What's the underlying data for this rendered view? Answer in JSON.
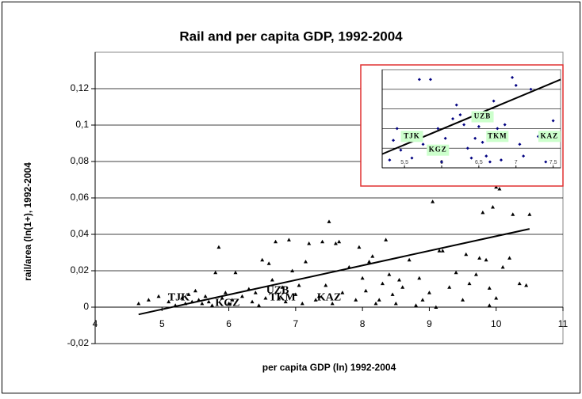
{
  "chart_data": [
    {
      "type": "scatter",
      "title": "Rail and per capita GDP, 1992-2004",
      "xlabel": "per capita GDP (ln) 1992-2004",
      "ylabel": "rail/area (ln(1+), 1992-2004",
      "xlim": [
        4,
        11
      ],
      "xticks": [
        4,
        5,
        6,
        7,
        8,
        9,
        10,
        11
      ],
      "ylim": [
        -0.02,
        0.14
      ],
      "yticks": [
        {
          "value": -0.02,
          "label": "-0,02"
        },
        0,
        {
          "value": 0.02,
          "label": "0,02"
        },
        {
          "value": 0.04,
          "label": "0,04"
        },
        {
          "value": 0.06,
          "label": "0,06"
        },
        {
          "value": 0.08,
          "label": "0,08"
        },
        {
          "value": 0.1,
          "label": "0,1"
        },
        {
          "value": 0.12,
          "label": "0,12"
        }
      ],
      "grid": true,
      "color": "#000000",
      "marker": "triangle",
      "x": [
        4.65,
        4.8,
        4.95,
        5.1,
        5.2,
        5.3,
        5.35,
        5.4,
        5.45,
        5.5,
        5.55,
        5.6,
        5.65,
        5.7,
        5.75,
        5.8,
        5.85,
        5.9,
        5.95,
        6.0,
        6.05,
        6.1,
        6.2,
        6.3,
        6.35,
        6.4,
        6.45,
        6.5,
        6.55,
        6.6,
        6.65,
        6.7,
        6.75,
        6.8,
        6.85,
        6.9,
        6.95,
        7.0,
        7.05,
        7.1,
        7.15,
        7.2,
        7.3,
        7.35,
        7.4,
        7.45,
        7.5,
        7.55,
        7.6,
        7.65,
        7.7,
        7.8,
        7.9,
        7.95,
        8.0,
        8.05,
        8.1,
        8.15,
        8.2,
        8.25,
        8.3,
        8.35,
        8.4,
        8.45,
        8.5,
        8.55,
        8.6,
        8.7,
        8.8,
        8.85,
        8.9,
        9.0,
        9.05,
        9.1,
        9.15,
        9.2,
        9.3,
        9.4,
        9.5,
        9.55,
        9.6,
        9.7,
        9.75,
        9.8,
        9.85,
        9.9,
        9.95,
        10.0,
        10.05,
        10.1,
        10.2,
        10.25,
        10.35,
        10.45,
        10.5,
        9.9,
        10.0
      ],
      "y": [
        0.002,
        0.004,
        0.006,
        0.003,
        0.001,
        0.005,
        0.002,
        0.007,
        0.003,
        0.009,
        0.004,
        0.002,
        0.006,
        0.003,
        0.001,
        0.019,
        0.033,
        0.005,
        0.008,
        0.002,
        0.004,
        0.019,
        0.006,
        0.01,
        0.003,
        0.008,
        0.001,
        0.026,
        0.005,
        0.024,
        0.015,
        0.036,
        0.005,
        0.011,
        0.003,
        0.037,
        0.02,
        0.007,
        0.012,
        0.002,
        0.025,
        0.035,
        0.004,
        0.006,
        0.036,
        0.012,
        0.047,
        0.002,
        0.035,
        0.036,
        0.008,
        0.022,
        0.004,
        0.033,
        0.016,
        0.009,
        0.025,
        0.028,
        0.002,
        0.004,
        0.013,
        0.037,
        0.018,
        0.007,
        0.002,
        0.015,
        0.011,
        0.026,
        0.001,
        0.016,
        0.004,
        0.008,
        0.058,
        0.0,
        0.031,
        0.031,
        0.011,
        0.019,
        0.004,
        0.029,
        0.013,
        0.018,
        0.027,
        0.052,
        0.026,
        0.001,
        0.055,
        0.005,
        0.065,
        0.022,
        0.027,
        0.051,
        0.013,
        0.012,
        0.051,
        0.0105,
        0.066
      ],
      "trendline": {
        "x": [
          4.65,
          10.5
        ],
        "y": [
          -0.004,
          0.043
        ]
      },
      "annotations": [
        {
          "text": "TJK",
          "x": 5.25,
          "y": 0.005
        },
        {
          "text": "KGZ",
          "x": 5.98,
          "y": 0.002
        },
        {
          "text": "UZB",
          "x": 6.73,
          "y": 0.009
        },
        {
          "text": "TKM",
          "x": 6.8,
          "y": 0.005
        },
        {
          "text": "KAZ",
          "x": 7.5,
          "y": 0.005
        }
      ]
    },
    {
      "type": "scatter",
      "xlim": [
        5.2,
        7.6
      ],
      "xticks": [
        {
          "value": 5.5,
          "label": "5,5"
        },
        6,
        {
          "value": 6.5,
          "label": "6,5"
        },
        7,
        {
          "value": 7.5,
          "label": "7,5"
        }
      ],
      "ylim": [
        0,
        0.05
      ],
      "ygrid": [
        0.01,
        0.02,
        0.03,
        0.04
      ],
      "color": "#000080",
      "marker": "diamond",
      "x": [
        5.3,
        5.35,
        5.4,
        5.45,
        5.5,
        5.55,
        5.6,
        5.7,
        5.75,
        5.85,
        5.9,
        5.95,
        6.0,
        6.05,
        6.15,
        6.2,
        6.25,
        6.3,
        6.35,
        6.4,
        6.45,
        6.5,
        6.55,
        6.6,
        6.65,
        6.7,
        6.75,
        6.8,
        6.85,
        6.95,
        7.0,
        7.05,
        7.1,
        7.2,
        7.3,
        7.4,
        7.5,
        7.55
      ],
      "y": [
        0.004,
        0.014,
        0.02,
        0.009,
        0.015,
        0.018,
        0.005,
        0.045,
        0.012,
        0.045,
        0.008,
        0.02,
        0.003,
        0.015,
        0.025,
        0.032,
        0.027,
        0.022,
        0.01,
        0.005,
        0.015,
        0.021,
        0.013,
        0.006,
        0.003,
        0.034,
        0.02,
        0.004,
        0.022,
        0.046,
        0.042,
        0.012,
        0.006,
        0.04,
        0.016,
        0.003,
        0.024,
        0.018
      ],
      "trendline": {
        "x": [
          5.2,
          7.6
        ],
        "y": [
          0.007,
          0.045
        ]
      },
      "annotations": [
        {
          "text": "TJK",
          "x": 5.6,
          "y": 0.016
        },
        {
          "text": "KGZ",
          "x": 5.95,
          "y": 0.009
        },
        {
          "text": "UZB",
          "x": 6.55,
          "y": 0.026
        },
        {
          "text": "TKM",
          "x": 6.75,
          "y": 0.016
        },
        {
          "text": "KAZ",
          "x": 7.45,
          "y": 0.016
        }
      ]
    }
  ]
}
